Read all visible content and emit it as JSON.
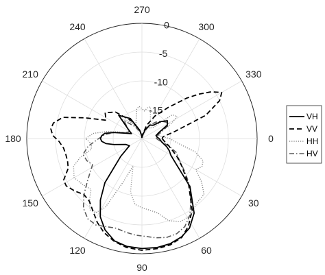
{
  "chart_data": {
    "type": "line",
    "subtype": "polar",
    "theta_direction": "clockwise",
    "theta_zero_location": "right",
    "theta_unit": "degrees",
    "theta_ticks": [
      0,
      30,
      60,
      90,
      120,
      150,
      180,
      210,
      240,
      270,
      300,
      330
    ],
    "r_ticks": [
      0,
      -5,
      -10,
      -15
    ],
    "r_range": [
      -20,
      0
    ],
    "grid": true,
    "legend": "right",
    "series": [
      {
        "name": "VH",
        "style": "solid",
        "color": "#000000",
        "theta": [
          0,
          10,
          18,
          24,
          30,
          36,
          45,
          55,
          62,
          68,
          75,
          82,
          90,
          98,
          105,
          112,
          118,
          124,
          130,
          140,
          150,
          160,
          168,
          172,
          176,
          180,
          184,
          188,
          192,
          198,
          205,
          215,
          225,
          240,
          255,
          265,
          270,
          280,
          290,
          300,
          310,
          318,
          325,
          332,
          340,
          348,
          356,
          360
        ],
        "r": [
          -17,
          -16.5,
          -15.5,
          -14.8,
          -14.2,
          -12.8,
          -8.2,
          -4.2,
          -2.4,
          -1.6,
          -1.1,
          -0.9,
          -0.9,
          -1.1,
          -1.6,
          -2.9,
          -4.6,
          -7.1,
          -10,
          -15.2,
          -17.5,
          -17,
          -15,
          -13.7,
          -13,
          -12.8,
          -13,
          -13.5,
          -15,
          -17,
          -18,
          -17,
          -14.3,
          -16,
          -18.5,
          -19.5,
          -19.8,
          -19.5,
          -18.5,
          -17.3,
          -17,
          -15.6,
          -14.6,
          -15,
          -16.8,
          -17.5,
          -17.3,
          -17
        ]
      },
      {
        "name": "VV",
        "style": "dashed",
        "color": "#000000",
        "theta": [
          0,
          8,
          15,
          22,
          28,
          35,
          45,
          55,
          62,
          68,
          75,
          82,
          90,
          98,
          105,
          112,
          118,
          124,
          130,
          136,
          142,
          148,
          152,
          158,
          163,
          168,
          173,
          178,
          182,
          186,
          190,
          195,
          200,
          207,
          215,
          225,
          240,
          255,
          265,
          270,
          280,
          290,
          300,
          310,
          318,
          322,
          326,
          330,
          334,
          340,
          348,
          355,
          360
        ],
        "r": [
          -16.5,
          -16,
          -15.2,
          -14.2,
          -13,
          -11.5,
          -8.5,
          -4.8,
          -2.8,
          -1.5,
          -0.9,
          -0.7,
          -0.6,
          -0.9,
          -1.5,
          -2.4,
          -3.5,
          -4.8,
          -5.8,
          -6,
          -5.2,
          -4.5,
          -4.6,
          -6.2,
          -6.5,
          -6.5,
          -6.3,
          -5.6,
          -4.5,
          -4.1,
          -4.4,
          -5.8,
          -9.5,
          -13,
          -12.2,
          -13.5,
          -16.5,
          -18.5,
          -19.5,
          -19.8,
          -19.2,
          -17.5,
          -15.5,
          -13,
          -9.5,
          -7.5,
          -5.5,
          -4,
          -5,
          -8.2,
          -14.2,
          -16.3,
          -16.5
        ]
      },
      {
        "name": "HH",
        "style": "dotted",
        "color": "#888888",
        "theta": [
          0,
          8,
          14,
          20,
          25,
          30,
          36,
          42,
          50,
          58,
          65,
          72,
          78,
          84,
          90,
          96,
          102,
          108,
          113,
          118,
          122,
          126,
          130,
          135,
          142,
          150,
          158,
          163,
          168,
          174,
          180,
          186,
          192,
          198,
          206,
          215,
          225,
          235,
          245,
          255,
          260,
          265,
          270,
          275,
          280,
          285,
          295,
          305,
          315,
          322,
          328,
          334,
          340,
          348,
          356,
          360
        ],
        "r": [
          -15.2,
          -13.5,
          -10.5,
          -8.7,
          -8.5,
          -9.2,
          -7.2,
          -5.5,
          -5.3,
          -4.2,
          -4.1,
          -5,
          -6.8,
          -7.5,
          -8,
          -8.5,
          -10.5,
          -15,
          -12,
          -6.5,
          -4.8,
          -4.7,
          -5.8,
          -7.5,
          -7,
          -6.4,
          -7.2,
          -8.8,
          -11,
          -11.2,
          -10.2,
          -11.5,
          -14,
          -16.5,
          -18,
          -17,
          -15.3,
          -16.5,
          -17.5,
          -16.2,
          -14.8,
          -14.4,
          -14.8,
          -15.2,
          -14.6,
          -14.3,
          -16.5,
          -17.8,
          -17.3,
          -13.3,
          -12.8,
          -14.5,
          -17,
          -17.2,
          -16.2,
          -15.2
        ]
      },
      {
        "name": "HV",
        "style": "dashdot",
        "color": "#5a5a5a",
        "theta": [
          0,
          8,
          15,
          22,
          30,
          38,
          45,
          52,
          58,
          64,
          70,
          76,
          82,
          88,
          94,
          100,
          106,
          112,
          118,
          124,
          130,
          136,
          142,
          148,
          152,
          158,
          165,
          172,
          180,
          186,
          192,
          200,
          208,
          215,
          225,
          240,
          255,
          265,
          270,
          280,
          290,
          300,
          310,
          318,
          325,
          330,
          334,
          340,
          348,
          356,
          360
        ],
        "r": [
          -17.5,
          -16.8,
          -15.2,
          -13.6,
          -12.5,
          -10.5,
          -8.2,
          -6.2,
          -4.3,
          -3,
          -2.4,
          -2.3,
          -2.6,
          -3,
          -3.2,
          -3.5,
          -3.8,
          -3.5,
          -3,
          -3.2,
          -4.2,
          -6,
          -8,
          -9.5,
          -10.3,
          -9.7,
          -9.4,
          -10.6,
          -12.5,
          -13.5,
          -15,
          -17,
          -17.5,
          -17,
          -15.6,
          -17.6,
          -18.8,
          -19.5,
          -19.8,
          -19.5,
          -18.5,
          -17.3,
          -16.3,
          -15.5,
          -15,
          -14.6,
          -15,
          -16.2,
          -17.2,
          -17.5,
          -17.5
        ]
      }
    ]
  }
}
